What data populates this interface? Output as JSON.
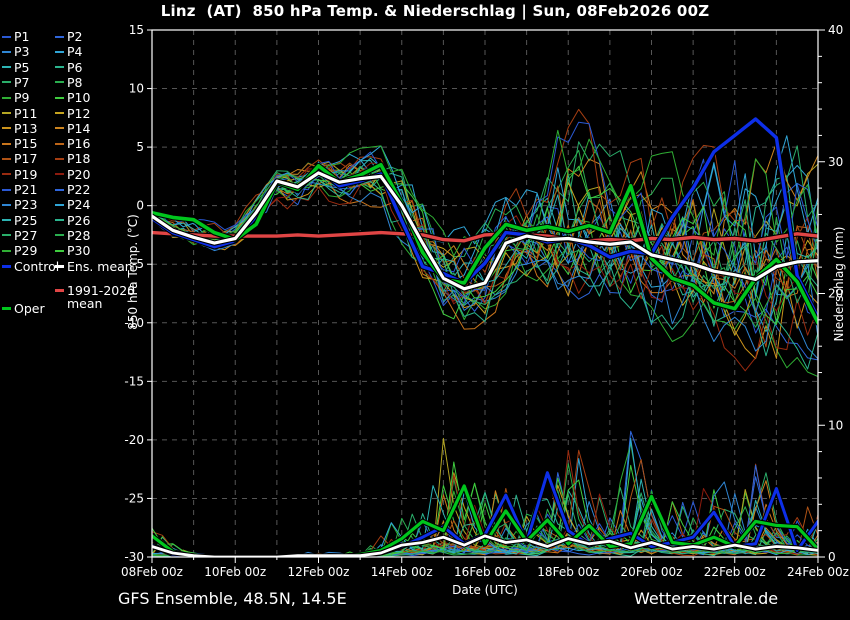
{
  "footer": {
    "left": "GFS Ensemble, 48.5N, 14.5E",
    "right": "Wetterzentrale.de"
  },
  "legend": {
    "members": [
      {
        "label": "P1",
        "color": "#2b59d4"
      },
      {
        "label": "P2",
        "color": "#2f66db"
      },
      {
        "label": "P3",
        "color": "#2f86d4"
      },
      {
        "label": "P4",
        "color": "#30a5d6"
      },
      {
        "label": "P5",
        "color": "#2db4b4"
      },
      {
        "label": "P6",
        "color": "#2bb48e"
      },
      {
        "label": "P7",
        "color": "#2aae6a"
      },
      {
        "label": "P8",
        "color": "#2aae4f"
      },
      {
        "label": "P9",
        "color": "#2fae34"
      },
      {
        "label": "P10",
        "color": "#3fcc3f"
      },
      {
        "label": "P11",
        "color": "#b4a623"
      },
      {
        "label": "P12",
        "color": "#c6a41f"
      },
      {
        "label": "P13",
        "color": "#cc931c"
      },
      {
        "label": "P14",
        "color": "#cc841f"
      },
      {
        "label": "P15",
        "color": "#c9751c"
      },
      {
        "label": "P16",
        "color": "#bd6518"
      },
      {
        "label": "P17",
        "color": "#b05315"
      },
      {
        "label": "P18",
        "color": "#a63e12"
      },
      {
        "label": "P19",
        "color": "#992b10"
      },
      {
        "label": "P20",
        "color": "#8c1b0e"
      },
      {
        "label": "P21",
        "color": "#2b59d4"
      },
      {
        "label": "P22",
        "color": "#2f66db"
      },
      {
        "label": "P23",
        "color": "#2f86d4"
      },
      {
        "label": "P24",
        "color": "#30a5d6"
      },
      {
        "label": "P25",
        "color": "#2db4b4"
      },
      {
        "label": "P26",
        "color": "#2bb48e"
      },
      {
        "label": "P27",
        "color": "#2aae6a"
      },
      {
        "label": "P28",
        "color": "#2aae4f"
      },
      {
        "label": "P29",
        "color": "#2fae34"
      },
      {
        "label": "P30",
        "color": "#3fcc3f"
      }
    ],
    "control": {
      "label": "Control",
      "color": "#0d2fe8"
    },
    "ens_mean": {
      "label": "Ens. mean",
      "color": "#ffffff"
    },
    "climate_mean": {
      "label": "1991-2020 mean",
      "color": "#e04545"
    },
    "oper": {
      "label": "Oper",
      "color": "#00c61d"
    }
  },
  "chart_data": {
    "type": "line",
    "title": "Linz  (AT)  850 hPa Temp. & Niederschlag | Sun, 08Feb2026 00Z",
    "xlabel": "Date (UTC)",
    "ylabel_left": "850 hPa Temp. (°C)",
    "ylabel_right": "Niederschlag (mm)",
    "grid": true,
    "legend_position": "left",
    "x_range_days": [
      0,
      16
    ],
    "x_start": "08Feb2026 00z",
    "x_step_hours_of_series": 12,
    "x_ticks": [
      {
        "day": 0,
        "label": "08Feb 00z"
      },
      {
        "day": 2,
        "label": "10Feb 00z"
      },
      {
        "day": 4,
        "label": "12Feb 00z"
      },
      {
        "day": 6,
        "label": "14Feb 00z"
      },
      {
        "day": 8,
        "label": "16Feb 00z"
      },
      {
        "day": 10,
        "label": "18Feb 00z"
      },
      {
        "day": 12,
        "label": "20Feb 00z"
      },
      {
        "day": 14,
        "label": "22Feb 00z"
      },
      {
        "day": 16,
        "label": "24Feb 00z"
      }
    ],
    "temp_axis": {
      "min": -30,
      "max": 15,
      "tick_step": 5,
      "tick_labels": [
        15,
        10,
        5,
        0,
        -5,
        -10,
        -15,
        -20,
        -25,
        -30
      ]
    },
    "precip_axis": {
      "min": 0,
      "max": 40,
      "major_step": 10,
      "minor_step": 2,
      "tick_labels": [
        40,
        30,
        20,
        10,
        0
      ]
    },
    "series_temp": {
      "ens_mean": [
        -0.9,
        -2.1,
        -2.7,
        -3.2,
        -2.8,
        -0.6,
        2.1,
        1.6,
        2.8,
        2.0,
        2.3,
        2.5,
        0.0,
        -3.2,
        -6.2,
        -7.1,
        -6.6,
        -3.2,
        -2.6,
        -2.9,
        -2.8,
        -3.1,
        -3.3,
        -3.1,
        -4.2,
        -4.6,
        -5.0,
        -5.6,
        -5.9,
        -6.3,
        -5.2,
        -4.8,
        -4.7
      ],
      "control": [
        -1.1,
        -2.3,
        -2.9,
        -3.5,
        -3.0,
        -0.9,
        2.1,
        1.3,
        3.2,
        1.7,
        2.1,
        2.7,
        -1.3,
        -5.2,
        -5.8,
        -6.6,
        -4.9,
        -2.3,
        -2.5,
        -3.1,
        -2.8,
        -3.4,
        -4.4,
        -3.9,
        -4.1,
        -1.0,
        1.5,
        4.6,
        6.0,
        7.4,
        5.8,
        -6.0,
        -9.6
      ],
      "oper": [
        -0.6,
        -1.0,
        -1.2,
        -2.3,
        -2.9,
        -1.6,
        2.0,
        1.4,
        3.4,
        2.0,
        2.6,
        3.5,
        0.2,
        -4.0,
        -6.3,
        -6.6,
        -3.6,
        -1.6,
        -2.1,
        -1.8,
        -2.2,
        -1.7,
        -2.3,
        1.7,
        -4.5,
        -6.2,
        -6.8,
        -8.3,
        -8.8,
        -6.2,
        -4.6,
        -6.5,
        -10.0
      ],
      "climate_mean": [
        -2.3,
        -2.4,
        -2.5,
        -2.6,
        -2.6,
        -2.6,
        -2.6,
        -2.5,
        -2.6,
        -2.5,
        -2.4,
        -2.3,
        -2.4,
        -2.5,
        -2.9,
        -3.0,
        -2.5,
        -2.4,
        -2.5,
        -2.6,
        -2.9,
        -3.0,
        -2.9,
        -3.0,
        -2.8,
        -2.9,
        -2.7,
        -2.9,
        -2.8,
        -3.0,
        -2.7,
        -2.4,
        -2.6
      ]
    },
    "ensemble_envelope_temp": {
      "min": [
        -1.6,
        -2.9,
        -3.6,
        -4.2,
        -3.9,
        -2.2,
        -0.2,
        -0.6,
        0.8,
        -0.2,
        0.3,
        -0.5,
        -3.8,
        -7.0,
        -9.6,
        -10.8,
        -10.2,
        -8.0,
        -7.6,
        -8.2,
        -9.0,
        -9.6,
        -10.2,
        -10.2,
        -11.2,
        -11.6,
        -12.2,
        -12.6,
        -13.4,
        -14.8,
        -16.2,
        -13.8,
        -14.6
      ],
      "max": [
        -0.3,
        -0.9,
        -1.0,
        -1.4,
        -1.2,
        0.9,
        3.1,
        3.3,
        4.6,
        4.1,
        4.9,
        5.1,
        3.6,
        1.4,
        -0.8,
        -1.8,
        -0.6,
        1.2,
        1.8,
        5.0,
        9.8,
        7.0,
        4.2,
        5.2,
        4.8,
        4.6,
        4.9,
        5.4,
        6.2,
        7.6,
        6.8,
        6.2,
        7.2
      ]
    },
    "series_precip": {
      "ens_mean": [
        0.8,
        0.3,
        0.1,
        0,
        0,
        0,
        0,
        0.1,
        0.1,
        0.1,
        0.1,
        0.3,
        0.9,
        1.1,
        1.5,
        0.9,
        1.6,
        1.1,
        1.3,
        0.8,
        1.4,
        1.0,
        1.2,
        0.7,
        1.1,
        0.6,
        0.8,
        0.6,
        0.9,
        0.6,
        0.8,
        0.7,
        0.5
      ],
      "control": [
        0.9,
        0.2,
        0,
        0,
        0,
        0,
        0,
        0,
        0,
        0,
        0,
        0.3,
        0.8,
        1.5,
        2.3,
        1.0,
        1.7,
        4.7,
        1.1,
        6.4,
        2.0,
        0.9,
        1.4,
        1.8,
        0.8,
        1.1,
        1.5,
        3.4,
        0.8,
        1.0,
        5.2,
        0.5,
        2.7
      ],
      "oper": [
        1.6,
        0.4,
        0,
        0,
        0,
        0,
        0,
        0.1,
        0,
        0,
        0.2,
        0.5,
        1.4,
        2.7,
        2.0,
        5.4,
        1.0,
        3.5,
        1.2,
        2.8,
        1.0,
        2.4,
        0.8,
        1.0,
        4.6,
        1.1,
        0.9,
        1.5,
        0.8,
        2.7,
        2.4,
        2.3,
        0.6
      ]
    },
    "ensemble_precip_max": [
      2.3,
      1.0,
      0.3,
      0.1,
      0.1,
      0.1,
      0.1,
      0.3,
      0.4,
      0.3,
      0.5,
      1.6,
      3.6,
      4.2,
      9.0,
      5.6,
      5.6,
      5.2,
      4.2,
      6.4,
      11.0,
      5.2,
      4.6,
      9.6,
      5.2,
      4.2,
      4.2,
      6.2,
      5.2,
      7.8,
      5.4,
      4.4,
      3.2
    ]
  },
  "style": {
    "background": "#000000",
    "foreground": "#ffffff",
    "gridline": "#565656",
    "control_color": "#0d2fe8",
    "ens_mean_color": "#ffffff",
    "climate_mean_color": "#e04545",
    "oper_color": "#00c61d"
  }
}
